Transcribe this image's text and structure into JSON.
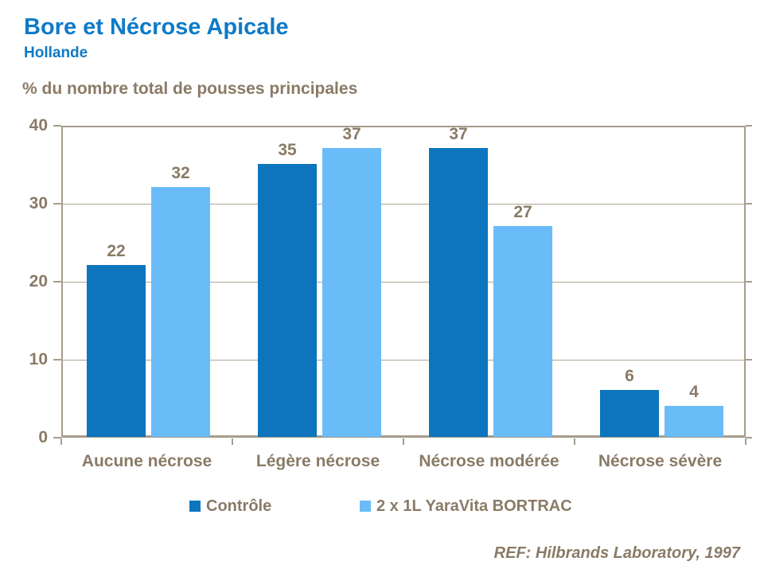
{
  "header": {
    "title": "Bore et Nécrose Apicale",
    "subtitle": "Hollande"
  },
  "axis_title": "% du nombre total de pousses principales",
  "footer": {
    "reference": "REF: Hilbrands Laboratory, 1997"
  },
  "colors": {
    "title_blue": "#0E7AC8",
    "control_blue": "#0C75BE",
    "bortrac_blue": "#6ABCF8",
    "text_brown": "#8A7A66",
    "axis_line": "#A79C8B",
    "gridline": "#AFA493"
  },
  "chart_data": {
    "type": "bar",
    "title": "Bore et Nécrose Apicale",
    "subtitle": "Hollande",
    "ylabel": "% du nombre total de pousses principales",
    "categories": [
      "Aucune nécrose",
      "Légère nécrose",
      "Nécrose modérée",
      "Nécrose sévère"
    ],
    "series": [
      {
        "name": "Contrôle",
        "color": "#0C75BE",
        "values": [
          22,
          35,
          37,
          6
        ]
      },
      {
        "name": "2 x 1L YaraVita BORTRAC",
        "color": "#6ABCF8",
        "values": [
          32,
          37,
          27,
          4
        ]
      }
    ],
    "ylim": [
      0,
      40
    ],
    "yticks": [
      0,
      10,
      20,
      30,
      40
    ],
    "grid": true,
    "data_labels": true,
    "legend_position": "bottom",
    "annotation": "REF: Hilbrands Laboratory, 1997"
  }
}
